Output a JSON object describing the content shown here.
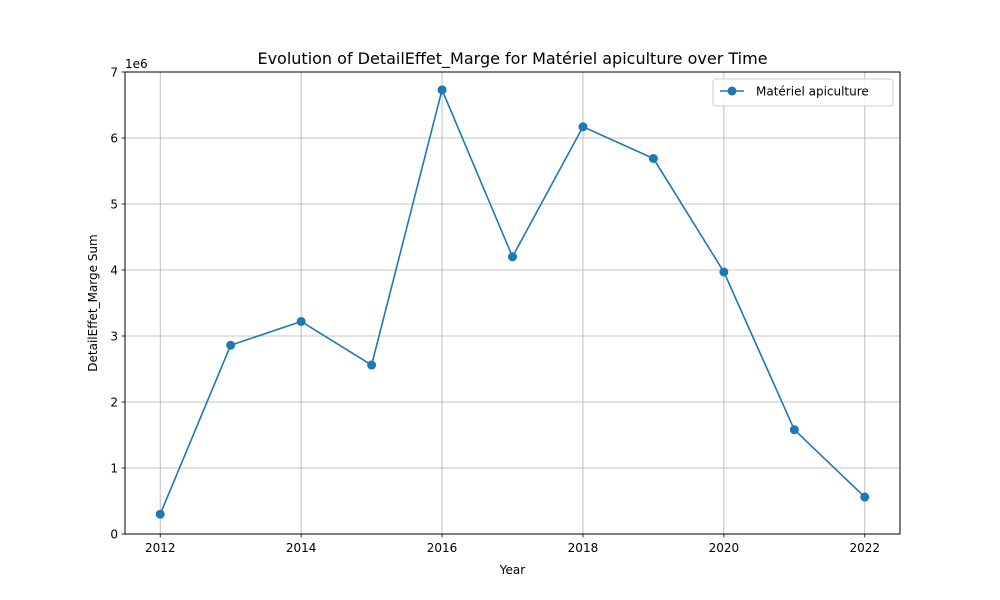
{
  "chart_data": {
    "type": "line",
    "title": "Evolution of DetailEffet_Marge for Matériel apiculture over Time",
    "xlabel": "Year",
    "ylabel": "DetailEffet_Marge Sum",
    "y_scale_label": "1e6",
    "x": [
      2012,
      2013,
      2014,
      2015,
      2016,
      2017,
      2018,
      2019,
      2020,
      2021,
      2022
    ],
    "series": [
      {
        "name": "Matériel apiculture",
        "color": "#1f77b4",
        "marker": "circle",
        "values": [
          300000,
          2860000,
          3220000,
          2560000,
          6730000,
          4200000,
          6170000,
          5690000,
          3970000,
          1580000,
          560000
        ]
      }
    ],
    "xlim": [
      2011.5,
      2022.5
    ],
    "ylim": [
      0,
      7000000
    ],
    "x_ticks": [
      2012,
      2014,
      2016,
      2018,
      2020,
      2022
    ],
    "y_ticks": [
      0,
      1,
      2,
      3,
      4,
      5,
      6,
      7
    ],
    "grid": true,
    "legend_position": "top-right"
  }
}
